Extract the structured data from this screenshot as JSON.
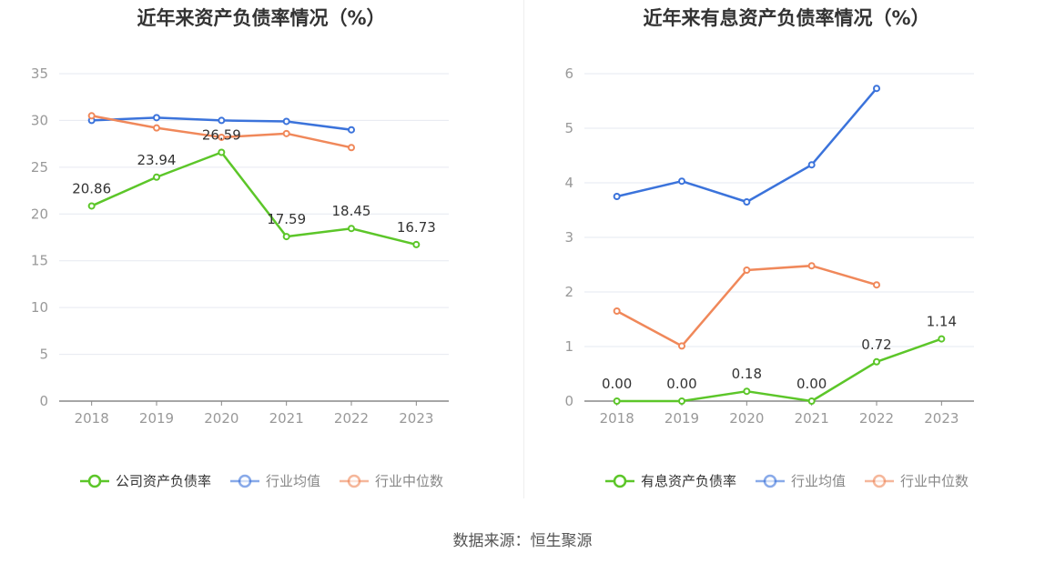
{
  "colors": {
    "company": "#5cc629",
    "industry_avg": "#3b73db",
    "industry_median": "#f0885a",
    "axis": "#888888",
    "grid": "#e6e9f0",
    "tick_text": "#999999",
    "label_text": "#333333",
    "legend_text": "#333333",
    "legend_dim": "#888888"
  },
  "source": "数据来源：恒生聚源",
  "chart_data": [
    {
      "type": "line",
      "title": "近年来资产负债率情况（%）",
      "categories": [
        "2018",
        "2019",
        "2020",
        "2021",
        "2022",
        "2023"
      ],
      "yticks": [
        "0",
        "5",
        "10",
        "15",
        "20",
        "25",
        "30",
        "35"
      ],
      "ylim": [
        0,
        35
      ],
      "grid": true,
      "legend_position": "bottom",
      "series": [
        {
          "name": "公司资产负债率",
          "values": [
            20.86,
            23.94,
            26.59,
            17.59,
            18.45,
            16.73
          ],
          "labels": [
            "20.86",
            "23.94",
            "26.59",
            "17.59",
            "18.45",
            "16.73"
          ],
          "color_key": "company",
          "active": true
        },
        {
          "name": "行业均值",
          "values": [
            30.0,
            30.3,
            30.0,
            29.9,
            29.0,
            null
          ],
          "color_key": "industry_avg",
          "active": false
        },
        {
          "name": "行业中位数",
          "values": [
            30.5,
            29.2,
            28.2,
            28.6,
            27.1,
            null
          ],
          "color_key": "industry_median",
          "active": false
        }
      ]
    },
    {
      "type": "line",
      "title": "近年来有息资产负债率情况（%）",
      "categories": [
        "2018",
        "2019",
        "2020",
        "2021",
        "2022",
        "2023"
      ],
      "yticks": [
        "0",
        "1",
        "2",
        "3",
        "4",
        "5",
        "6"
      ],
      "ylim": [
        0,
        6
      ],
      "grid": true,
      "legend_position": "bottom",
      "series": [
        {
          "name": "有息资产负债率",
          "values": [
            0.0,
            0.0,
            0.18,
            0.0,
            0.72,
            1.14
          ],
          "labels": [
            "0.00",
            "0.00",
            "0.18",
            "0.00",
            "0.72",
            "1.14"
          ],
          "color_key": "company",
          "active": true
        },
        {
          "name": "行业均值",
          "values": [
            3.75,
            4.03,
            3.65,
            4.33,
            5.73,
            null
          ],
          "color_key": "industry_avg",
          "active": false
        },
        {
          "name": "行业中位数",
          "values": [
            1.65,
            1.01,
            2.4,
            2.48,
            2.13,
            null
          ],
          "color_key": "industry_median",
          "active": false
        }
      ]
    }
  ]
}
